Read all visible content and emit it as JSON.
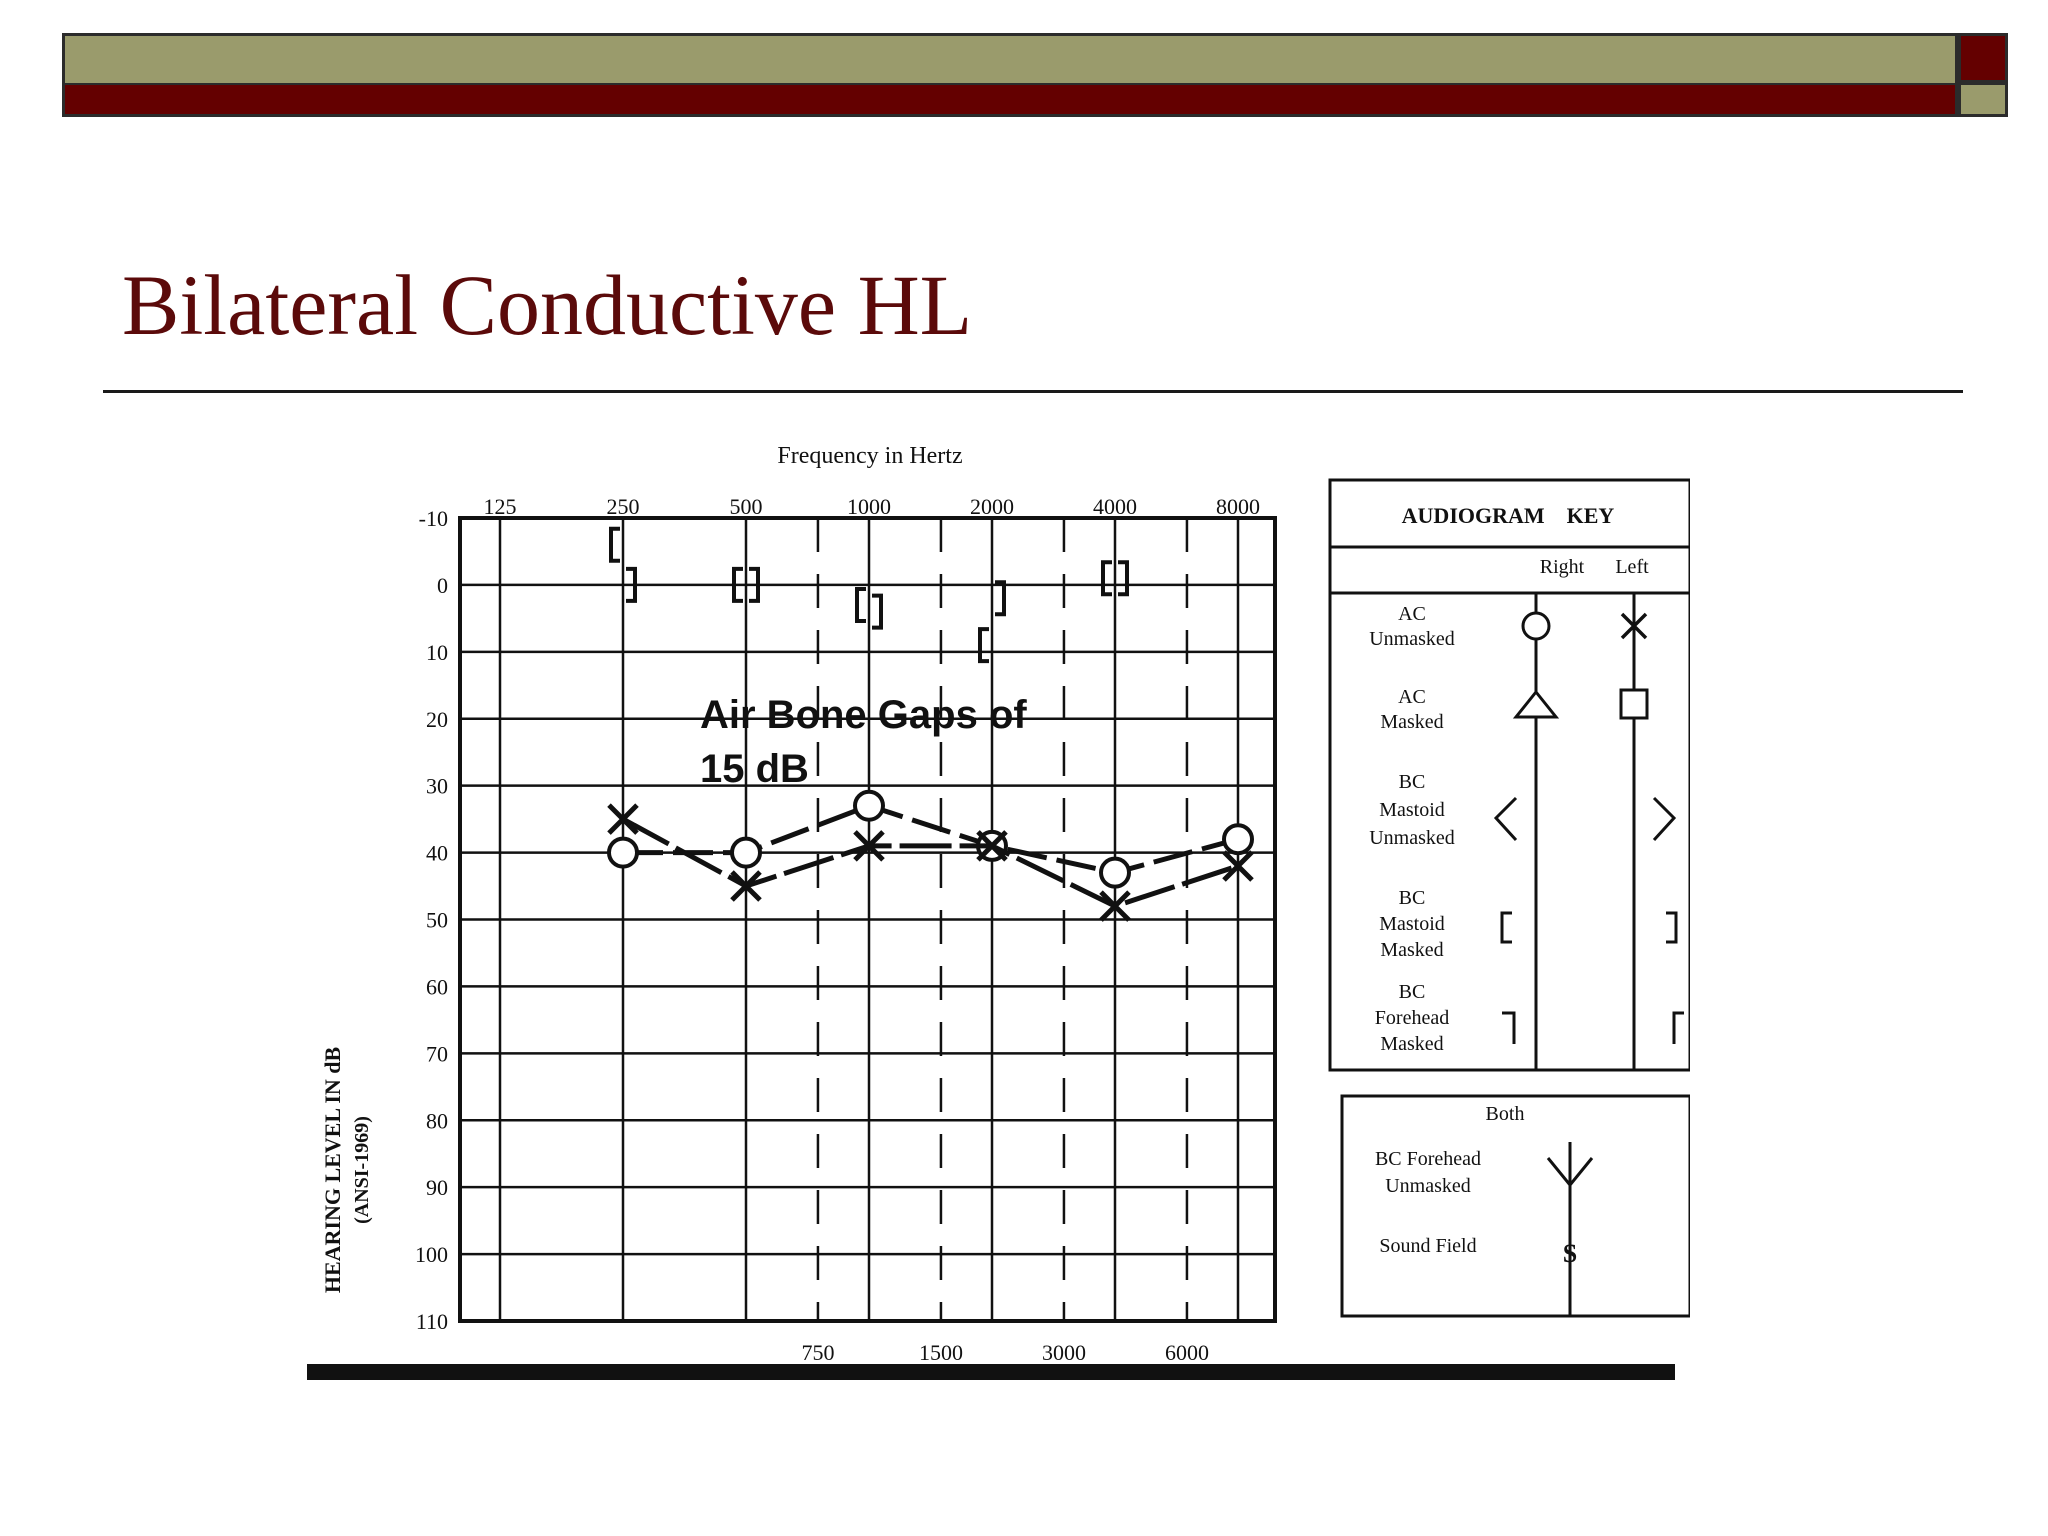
{
  "slide": {
    "title": "Bilateral Conductive HL"
  },
  "colors": {
    "banner_olive": "#9a9b6c",
    "banner_red": "#640000",
    "title_color": "#5b0a0a",
    "ink": "#111111"
  },
  "annotation": {
    "line1": "Air Bone Gaps of",
    "line2": "15 dB"
  },
  "chart_data": {
    "type": "line",
    "title": "Frequency in Hertz",
    "ylabel_line1": "HEARING LEVEL IN dB",
    "ylabel_line2": "(ANSI-1969)",
    "ylim": [
      -10,
      110
    ],
    "y_ticks": [
      "-10",
      "0",
      "10",
      "20",
      "30",
      "40",
      "50",
      "60",
      "70",
      "80",
      "90",
      "100",
      "110"
    ],
    "x_top_labels": [
      "125",
      "250",
      "500",
      "1000",
      "2000",
      "4000",
      "8000"
    ],
    "x_bottom_labels": [
      "750",
      "1500",
      "3000",
      "6000"
    ],
    "x": [
      250,
      500,
      1000,
      2000,
      4000,
      8000
    ],
    "series": [
      {
        "name": "Right AC Unmasked",
        "symbol": "O",
        "values": [
          40,
          40,
          33,
          39,
          43,
          38
        ]
      },
      {
        "name": "Left AC Unmasked",
        "symbol": "X",
        "values": [
          35,
          45,
          39,
          39,
          48,
          42
        ]
      },
      {
        "name": "Right BC Mastoid Masked",
        "symbol": "[",
        "values": [
          -6,
          0,
          3,
          9,
          -1,
          null
        ]
      },
      {
        "name": "Left BC Mastoid Masked",
        "symbol": "]",
        "values": [
          0,
          0,
          4,
          2,
          -1,
          null
        ]
      }
    ]
  },
  "audiogram_key": {
    "title": "AUDIOGRAM    KEY",
    "col_right": "Right",
    "col_left": "Left",
    "rows": [
      {
        "label1": "AC",
        "label2": "Unmasked",
        "label3": ""
      },
      {
        "label1": "AC",
        "label2": "Masked",
        "label3": ""
      },
      {
        "label1": "BC",
        "label2": "Mastoid",
        "label3": "Unmasked"
      },
      {
        "label1": "BC",
        "label2": "Mastoid",
        "label3": "Masked"
      },
      {
        "label1": "BC",
        "label2": "Forehead",
        "label3": "Masked"
      }
    ],
    "both": {
      "title": "Both",
      "row1_label1": "BC Forehead",
      "row1_label2": "Unmasked",
      "row2_label": "Sound Field",
      "row2_symbol": "S"
    }
  }
}
